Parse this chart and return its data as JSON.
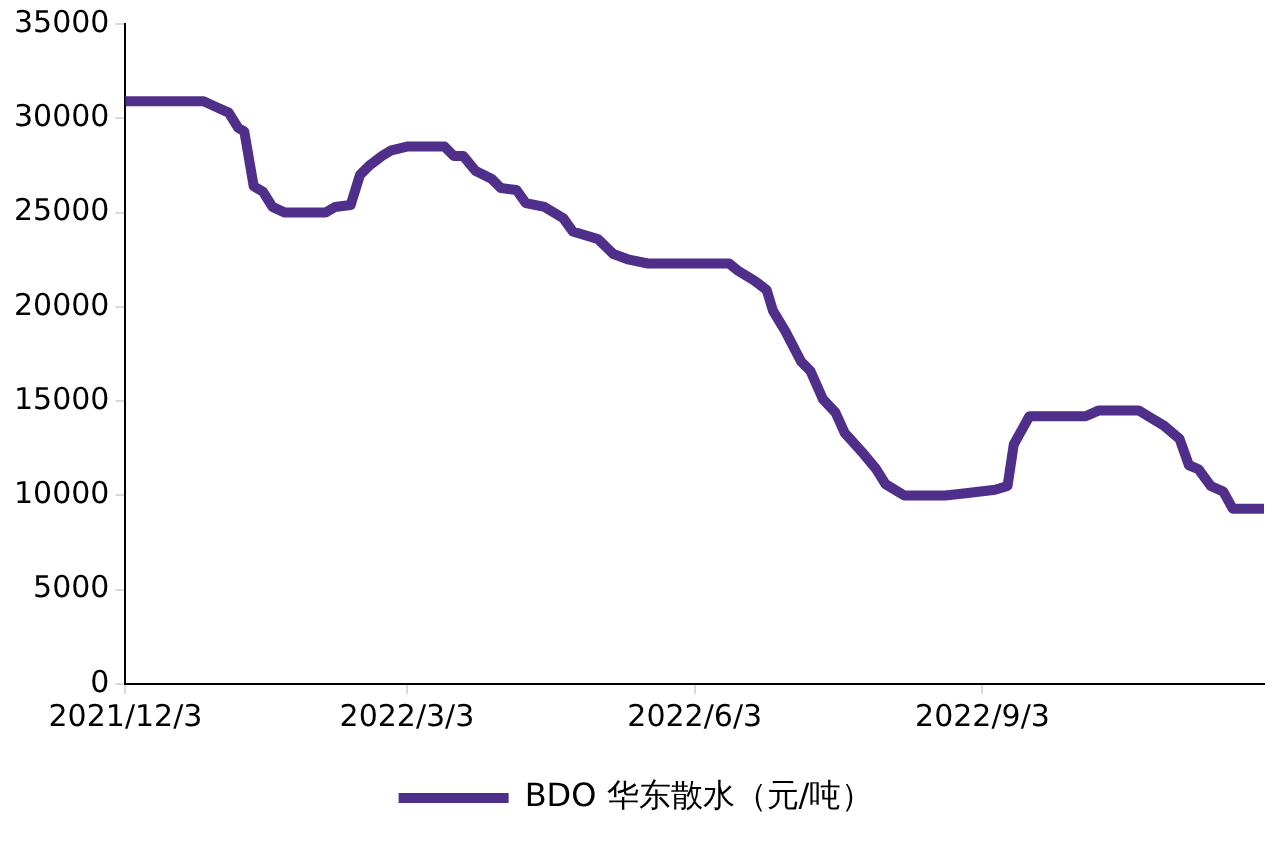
{
  "chart_data": {
    "type": "line",
    "x": [
      "2021-12-03",
      "2021-12-28",
      "2022-01-01",
      "2022-01-05",
      "2022-01-08",
      "2022-01-10",
      "2022-01-13",
      "2022-01-16",
      "2022-01-19",
      "2022-01-23",
      "2022-02-05",
      "2022-02-08",
      "2022-02-13",
      "2022-02-16",
      "2022-02-19",
      "2022-02-23",
      "2022-02-26",
      "2022-03-03",
      "2022-03-15",
      "2022-03-18",
      "2022-03-21",
      "2022-03-25",
      "2022-03-30",
      "2022-04-02",
      "2022-04-07",
      "2022-04-10",
      "2022-04-16",
      "2022-04-22",
      "2022-04-25",
      "2022-05-03",
      "2022-05-08",
      "2022-05-13",
      "2022-05-19",
      "2022-06-01",
      "2022-06-14",
      "2022-06-17",
      "2022-06-22",
      "2022-06-26",
      "2022-06-28",
      "2022-07-02",
      "2022-07-07",
      "2022-07-10",
      "2022-07-14",
      "2022-07-18",
      "2022-07-21",
      "2022-07-27",
      "2022-07-31",
      "2022-08-03",
      "2022-08-09",
      "2022-08-22",
      "2022-08-28",
      "2022-09-07",
      "2022-09-11",
      "2022-09-13",
      "2022-09-15",
      "2022-09-18",
      "2022-10-06",
      "2022-10-10",
      "2022-10-23",
      "2022-10-26",
      "2022-10-31",
      "2022-11-05",
      "2022-11-08",
      "2022-11-11",
      "2022-11-15",
      "2022-11-19",
      "2022-11-22",
      "2022-12-02"
    ],
    "series": [
      {
        "name": "BDO 华东散水（元/吨）",
        "color": "#4f2f8a",
        "values": [
          30900,
          30900,
          30600,
          30300,
          29500,
          29300,
          26400,
          26100,
          25300,
          25000,
          25000,
          25300,
          25400,
          27000,
          27500,
          28000,
          28300,
          28500,
          28500,
          28000,
          28000,
          27200,
          26800,
          26300,
          26200,
          25500,
          25300,
          24700,
          24000,
          23600,
          22800,
          22500,
          22300,
          22300,
          22300,
          21900,
          21400,
          20900,
          19800,
          18700,
          17100,
          16600,
          15100,
          14400,
          13300,
          12200,
          11400,
          10600,
          10000,
          10000,
          10100,
          10300,
          10500,
          12700,
          13300,
          14200,
          14200,
          14500,
          14500,
          14200,
          13700,
          13000,
          11600,
          11400,
          10500,
          10200,
          9300,
          9300
        ]
      }
    ],
    "xlim": [
      "2021-12-03",
      "2022-12-02"
    ],
    "xticks": [
      {
        "value": "2021-12-03",
        "label": "2021/12/3"
      },
      {
        "value": "2022-03-03",
        "label": "2022/3/3"
      },
      {
        "value": "2022-06-03",
        "label": "2022/6/3"
      },
      {
        "value": "2022-09-03",
        "label": "2022/9/3"
      }
    ],
    "ylim": [
      0,
      35000
    ],
    "yticks": [
      0,
      5000,
      10000,
      15000,
      20000,
      25000,
      30000,
      35000
    ],
    "grid": false,
    "legend": "bottom",
    "marker": "none",
    "line_style": "solid"
  }
}
